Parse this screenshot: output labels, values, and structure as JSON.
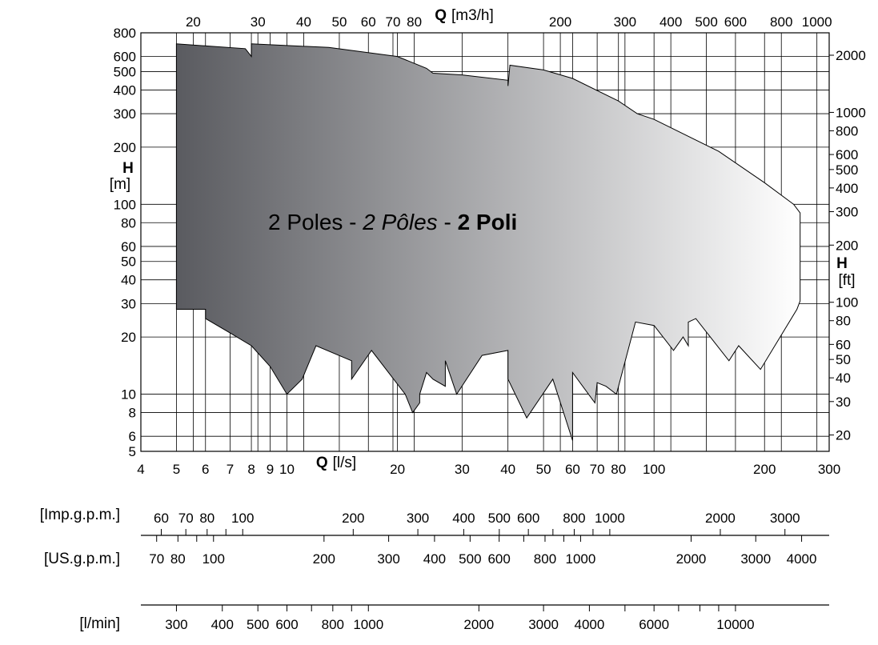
{
  "chart_data": {
    "type": "area",
    "title_parts": [
      "2 Poles - ",
      "2 Pôles",
      " - ",
      "2 Poli"
    ],
    "log_scale": true,
    "grid": true,
    "x_bottom": {
      "label_bold": "Q",
      "label_unit": "[l/s]",
      "range": [
        4,
        300
      ],
      "ticks": [
        4,
        5,
        6,
        7,
        8,
        9,
        10,
        20,
        30,
        40,
        50,
        60,
        70,
        80,
        100,
        200,
        300
      ],
      "tick_labels": [
        "4",
        "5",
        "6",
        "7",
        "8",
        "9",
        "10",
        "20",
        "30",
        "40",
        "50",
        "60",
        "70",
        "80",
        "100",
        "200",
        "300"
      ]
    },
    "x_top": {
      "label_bold": "Q",
      "label_unit": "[m3/h]",
      "ticks": [
        20,
        30,
        40,
        50,
        60,
        70,
        80,
        200,
        300,
        400,
        500,
        600,
        800,
        1000
      ],
      "tick_labels": [
        "20",
        "30",
        "40",
        "50",
        "60",
        "70",
        "80",
        "200",
        "300",
        "400",
        "500",
        "600",
        "800",
        "1000"
      ]
    },
    "y_left": {
      "label_bold": "H",
      "label_unit": "[m]",
      "range": [
        5,
        800
      ],
      "ticks": [
        5,
        6,
        8,
        10,
        20,
        30,
        40,
        50,
        60,
        80,
        100,
        200,
        300,
        400,
        500,
        600,
        800
      ],
      "tick_labels": [
        "5",
        "6",
        "8",
        "10",
        "20",
        "30",
        "40",
        "50",
        "60",
        "80",
        "100",
        "200",
        "300",
        "400",
        "500",
        "600",
        "800"
      ]
    },
    "y_right": {
      "label_bold": "H",
      "label_unit": "[ft]",
      "ticks": [
        20,
        30,
        40,
        50,
        60,
        80,
        100,
        200,
        300,
        400,
        500,
        600,
        800,
        1000,
        2000
      ],
      "tick_labels": [
        "20",
        "30",
        "40",
        "50",
        "60",
        "80",
        "100",
        "200",
        "300",
        "400",
        "500",
        "600",
        "800",
        "1000",
        "2000"
      ]
    },
    "envelope": [
      [
        5,
        210
      ],
      [
        5,
        700
      ],
      [
        7.7,
        660
      ],
      [
        8.0,
        600
      ],
      [
        8.0,
        700
      ],
      [
        13,
        670
      ],
      [
        20,
        600
      ],
      [
        24,
        520
      ],
      [
        25,
        490
      ],
      [
        30,
        480
      ],
      [
        40,
        450
      ],
      [
        40,
        420
      ],
      [
        40.5,
        540
      ],
      [
        50,
        510
      ],
      [
        60,
        460
      ],
      [
        80,
        350
      ],
      [
        90,
        300
      ],
      [
        100,
        280
      ],
      [
        150,
        190
      ],
      [
        200,
        130
      ],
      [
        240,
        100
      ],
      [
        250,
        90
      ],
      [
        250,
        31
      ],
      [
        245,
        28
      ],
      [
        195,
        13.5
      ],
      [
        170,
        18
      ],
      [
        160,
        15
      ],
      [
        130,
        25
      ],
      [
        124,
        24
      ],
      [
        124,
        18
      ],
      [
        120,
        20
      ],
      [
        113,
        17
      ],
      [
        100,
        23
      ],
      [
        89,
        24
      ],
      [
        79,
        10
      ],
      [
        74,
        11
      ],
      [
        70,
        11.5
      ],
      [
        69,
        9
      ],
      [
        60,
        13
      ],
      [
        60,
        5.7
      ],
      [
        53,
        12
      ],
      [
        45,
        7.5
      ],
      [
        40,
        12
      ],
      [
        40,
        17
      ],
      [
        34,
        16
      ],
      [
        29,
        10
      ],
      [
        27,
        15
      ],
      [
        27,
        11
      ],
      [
        25,
        12
      ],
      [
        24,
        13
      ],
      [
        23,
        10
      ],
      [
        23,
        9
      ],
      [
        22,
        8
      ],
      [
        21,
        10
      ],
      [
        17,
        17
      ],
      [
        15,
        12
      ],
      [
        15,
        15
      ],
      [
        12,
        18
      ],
      [
        11,
        12
      ],
      [
        10,
        10
      ],
      [
        9,
        14
      ],
      [
        8,
        18
      ],
      [
        7,
        21
      ],
      [
        6,
        25
      ],
      [
        6,
        28
      ],
      [
        5,
        28
      ],
      [
        5,
        210
      ]
    ],
    "gradient": {
      "left": "#5a5b60",
      "right": "#ffffff"
    },
    "extra_scales": [
      {
        "label": "[Imp.g.p.m.]",
        "ticks": [
          60,
          70,
          80,
          100,
          200,
          300,
          400,
          500,
          600,
          800,
          1000,
          2000,
          3000
        ],
        "tick_labels": [
          "60",
          "70",
          "80",
          "100",
          "200",
          "300",
          "400",
          "500",
          "600",
          "800",
          "1000",
          "2000",
          "3000"
        ],
        "scale_to_ls": 0.07577,
        "labels_below": false
      },
      {
        "label": "[US.g.p.m.]",
        "ticks": [
          70,
          80,
          100,
          200,
          300,
          400,
          500,
          600,
          800,
          1000,
          2000,
          3000,
          4000
        ],
        "tick_labels": [
          "70",
          "80",
          "100",
          "200",
          "300",
          "400",
          "500",
          "600",
          "800",
          "1000",
          "2000",
          "3000",
          "4000"
        ],
        "scale_to_ls": 0.06309,
        "labels_below": true
      },
      {
        "label": "[l/min]",
        "ticks": [
          300,
          400,
          500,
          600,
          800,
          1000,
          2000,
          3000,
          4000,
          6000,
          10000
        ],
        "tick_labels": [
          "300",
          "400",
          "500",
          "600",
          "800",
          "1000",
          "2000",
          "3000",
          "4000",
          "6000",
          "10000"
        ],
        "scale_to_ls": 0.016667,
        "labels_below": true
      }
    ]
  }
}
